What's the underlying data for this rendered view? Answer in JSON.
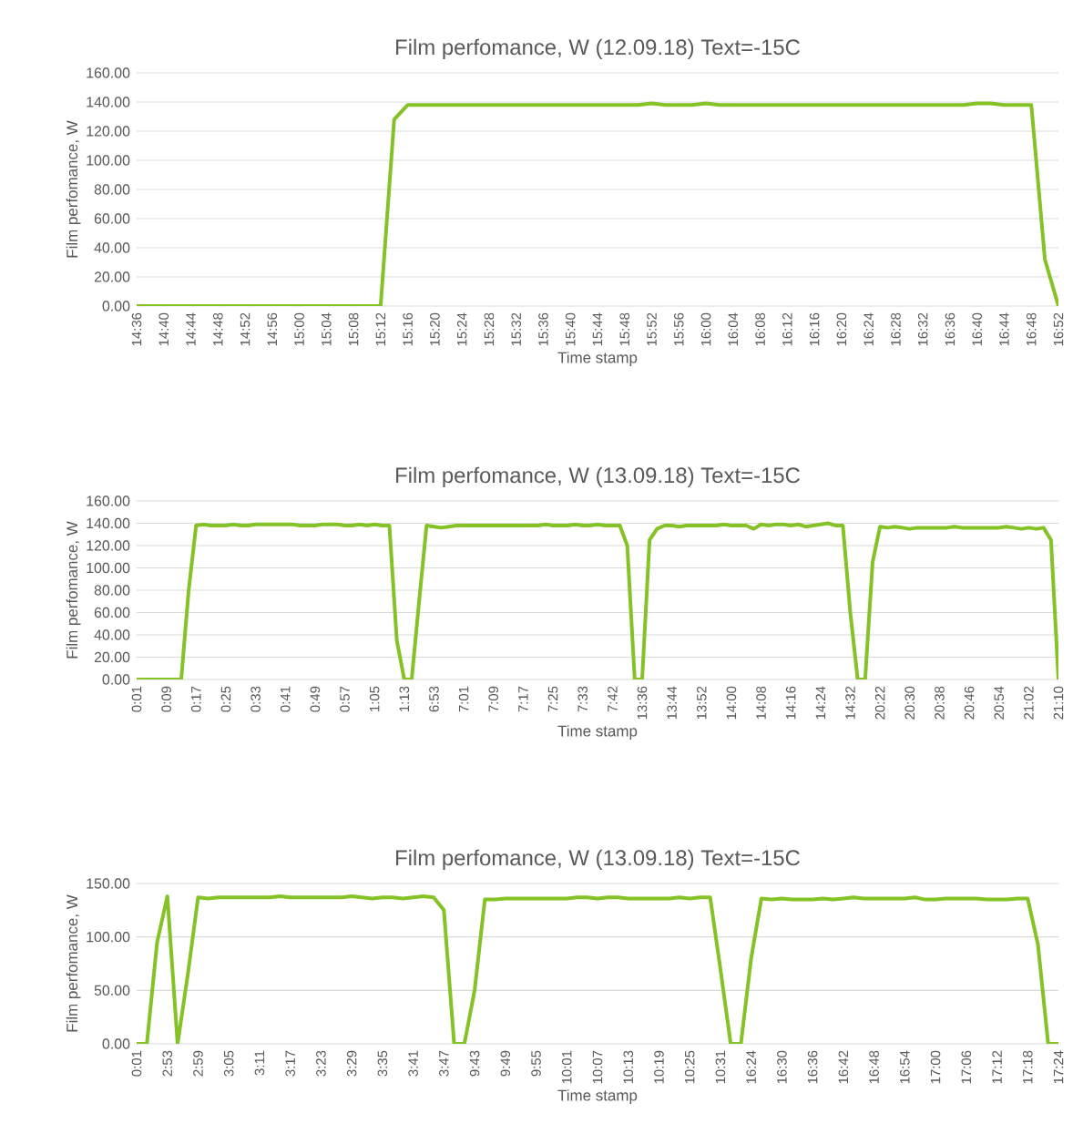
{
  "chart_data": [
    {
      "type": "line",
      "title": "Film perfomance, W (12.09.18) Text=-15C",
      "xlabel": "Time stamp",
      "ylabel": "Film perfomance, W",
      "categories": [
        "14:36",
        null,
        "14:40",
        null,
        "14:44",
        null,
        "14:48",
        null,
        "14:52",
        null,
        "14:56",
        null,
        "15:00",
        null,
        "15:04",
        null,
        "15:08",
        null,
        "15:12",
        null,
        "15:16",
        null,
        "15:20",
        null,
        "15:24",
        null,
        "15:28",
        null,
        "15:32",
        null,
        "15:36",
        null,
        "15:40",
        null,
        "15:44",
        null,
        "15:48",
        null,
        "15:52",
        null,
        "15:56",
        null,
        "16:00",
        null,
        "16:04",
        null,
        "16:08",
        null,
        "16:12",
        null,
        "16:16",
        null,
        "16:20",
        null,
        "16:24",
        null,
        "16:28",
        null,
        "16:32",
        null,
        "16:36",
        null,
        "16:40",
        null,
        "16:44",
        null,
        "16:48",
        null,
        "16:52"
      ],
      "series": [
        {
          "color": "#84c225",
          "values": [
            0,
            0,
            0,
            0,
            0,
            0,
            0,
            0,
            0,
            0,
            0,
            0,
            0,
            0,
            0,
            0,
            0,
            0,
            0,
            128,
            138,
            138,
            138,
            138,
            138,
            138,
            138,
            138,
            138,
            138,
            138,
            138,
            138,
            138,
            138,
            138,
            138,
            138,
            139,
            138,
            138,
            138,
            139,
            138,
            138,
            138,
            138,
            138,
            138,
            138,
            138,
            138,
            138,
            138,
            138,
            138,
            138,
            138,
            138,
            138,
            138,
            138,
            139,
            139,
            138,
            138,
            138,
            32,
            0
          ]
        }
      ],
      "ylim": [
        0,
        160
      ],
      "yticks": [
        {
          "value": 0,
          "label": "0.00"
        },
        {
          "value": 20,
          "label": "20.00"
        },
        {
          "value": 40,
          "label": "40.00"
        },
        {
          "value": 60,
          "label": "60.00"
        },
        {
          "value": 80,
          "label": "80.00"
        },
        {
          "value": 100,
          "label": "100.00"
        },
        {
          "value": 120,
          "label": "120.00"
        },
        {
          "value": 140,
          "label": "140.00"
        },
        {
          "value": 160,
          "label": "160.00"
        }
      ],
      "grid": "y"
    },
    {
      "type": "line",
      "title": "Film perfomance, W (13.09.18) Text=-15C",
      "xlabel": "Time stamp",
      "ylabel": "Film perfomance, W",
      "categories": [
        "0:01",
        null,
        null,
        null,
        "0:09",
        null,
        null,
        null,
        "0:17",
        null,
        null,
        null,
        "0:25",
        null,
        null,
        null,
        "0:33",
        null,
        null,
        null,
        "0:41",
        null,
        null,
        null,
        "0:49",
        null,
        null,
        null,
        "0:57",
        null,
        null,
        null,
        "1:05",
        null,
        null,
        null,
        "1:13",
        null,
        null,
        null,
        "6:53",
        null,
        null,
        null,
        "7:01",
        null,
        null,
        null,
        "7:09",
        null,
        null,
        null,
        "7:17",
        null,
        null,
        null,
        "7:25",
        null,
        null,
        null,
        "7:33",
        null,
        null,
        null,
        "7:42",
        null,
        null,
        null,
        "13:36",
        null,
        null,
        null,
        "13:44",
        null,
        null,
        null,
        "13:52",
        null,
        null,
        null,
        "14:00",
        null,
        null,
        null,
        "14:08",
        null,
        null,
        null,
        "14:16",
        null,
        null,
        null,
        "14:24",
        null,
        null,
        null,
        "14:32",
        null,
        null,
        null,
        "20:22",
        null,
        null,
        null,
        "20:30",
        null,
        null,
        null,
        "20:38",
        null,
        null,
        null,
        "20:46",
        null,
        null,
        null,
        "20:54",
        null,
        null,
        null,
        "21:02",
        null,
        null,
        null,
        "21:10"
      ],
      "series": [
        {
          "color": "#84c225",
          "values": [
            0,
            0,
            0,
            0,
            0,
            0,
            0,
            80,
            138,
            139,
            138,
            138,
            138,
            139,
            138,
            138,
            139,
            139,
            139,
            139,
            139,
            139,
            138,
            138,
            138,
            139,
            139,
            139,
            138,
            138,
            139,
            138,
            139,
            138,
            138,
            35,
            0,
            0,
            70,
            138,
            137,
            136,
            137,
            138,
            138,
            138,
            138,
            138,
            138,
            138,
            138,
            138,
            138,
            138,
            138,
            139,
            138,
            138,
            138,
            139,
            138,
            138,
            139,
            138,
            138,
            138,
            120,
            0,
            0,
            125,
            135,
            138,
            138,
            137,
            138,
            138,
            138,
            138,
            138,
            139,
            138,
            138,
            138,
            135,
            139,
            138,
            139,
            139,
            138,
            139,
            137,
            138,
            139,
            140,
            138,
            138,
            60,
            0,
            0,
            105,
            137,
            136,
            137,
            136,
            135,
            136,
            136,
            136,
            136,
            136,
            137,
            136,
            136,
            136,
            136,
            136,
            136,
            137,
            136,
            135,
            136,
            135,
            136,
            125,
            0
          ]
        }
      ],
      "ylim": [
        0,
        160
      ],
      "yticks": [
        {
          "value": 0,
          "label": "0.00"
        },
        {
          "value": 20,
          "label": "20.00"
        },
        {
          "value": 40,
          "label": "40.00"
        },
        {
          "value": 60,
          "label": "60.00"
        },
        {
          "value": 80,
          "label": "80.00"
        },
        {
          "value": 100,
          "label": "100.00"
        },
        {
          "value": 120,
          "label": "120.00"
        },
        {
          "value": 140,
          "label": "140.00"
        },
        {
          "value": 160,
          "label": "160.00"
        }
      ],
      "grid": "y"
    },
    {
      "type": "line",
      "title": "Film perfomance, W (13.09.18) Text=-15C",
      "xlabel": "Time stamp",
      "ylabel": "Film perfomance, W",
      "categories": [
        "0:01",
        null,
        null,
        "2:53",
        null,
        null,
        "2:59",
        null,
        null,
        "3:05",
        null,
        null,
        "3:11",
        null,
        null,
        "3:17",
        null,
        null,
        "3:23",
        null,
        null,
        "3:29",
        null,
        null,
        "3:35",
        null,
        null,
        "3:41",
        null,
        null,
        "3:47",
        null,
        null,
        "9:43",
        null,
        null,
        "9:49",
        null,
        null,
        "9:55",
        null,
        null,
        "10:01",
        null,
        null,
        "10:07",
        null,
        null,
        "10:13",
        null,
        null,
        "10:19",
        null,
        null,
        "10:25",
        null,
        null,
        "10:31",
        null,
        null,
        "16:24",
        null,
        null,
        "16:30",
        null,
        null,
        "16:36",
        null,
        null,
        "16:42",
        null,
        null,
        "16:48",
        null,
        null,
        "16:54",
        null,
        null,
        "17:00",
        null,
        null,
        "17:06",
        null,
        null,
        "17:12",
        null,
        null,
        "17:18",
        null,
        null,
        "17:24"
      ],
      "series": [
        {
          "color": "#84c225",
          "values": [
            0,
            0,
            95,
            138,
            0,
            65,
            137,
            136,
            137,
            137,
            137,
            137,
            137,
            137,
            138,
            137,
            137,
            137,
            137,
            137,
            137,
            138,
            137,
            136,
            137,
            137,
            136,
            137,
            138,
            137,
            125,
            0,
            0,
            50,
            135,
            135,
            136,
            136,
            136,
            136,
            136,
            136,
            136,
            137,
            137,
            136,
            137,
            137,
            136,
            136,
            136,
            136,
            136,
            137,
            136,
            137,
            137,
            70,
            0,
            0,
            80,
            136,
            135,
            136,
            135,
            135,
            135,
            136,
            135,
            136,
            137,
            136,
            136,
            136,
            136,
            136,
            137,
            135,
            135,
            136,
            136,
            136,
            136,
            135,
            135,
            135,
            136,
            136,
            93,
            0,
            0
          ]
        }
      ],
      "ylim": [
        0,
        150
      ],
      "yticks": [
        {
          "value": 0,
          "label": "0.00"
        },
        {
          "value": 50,
          "label": "50.00"
        },
        {
          "value": 100,
          "label": "100.00"
        },
        {
          "value": 150,
          "label": "150.00"
        }
      ],
      "grid": "y"
    }
  ]
}
